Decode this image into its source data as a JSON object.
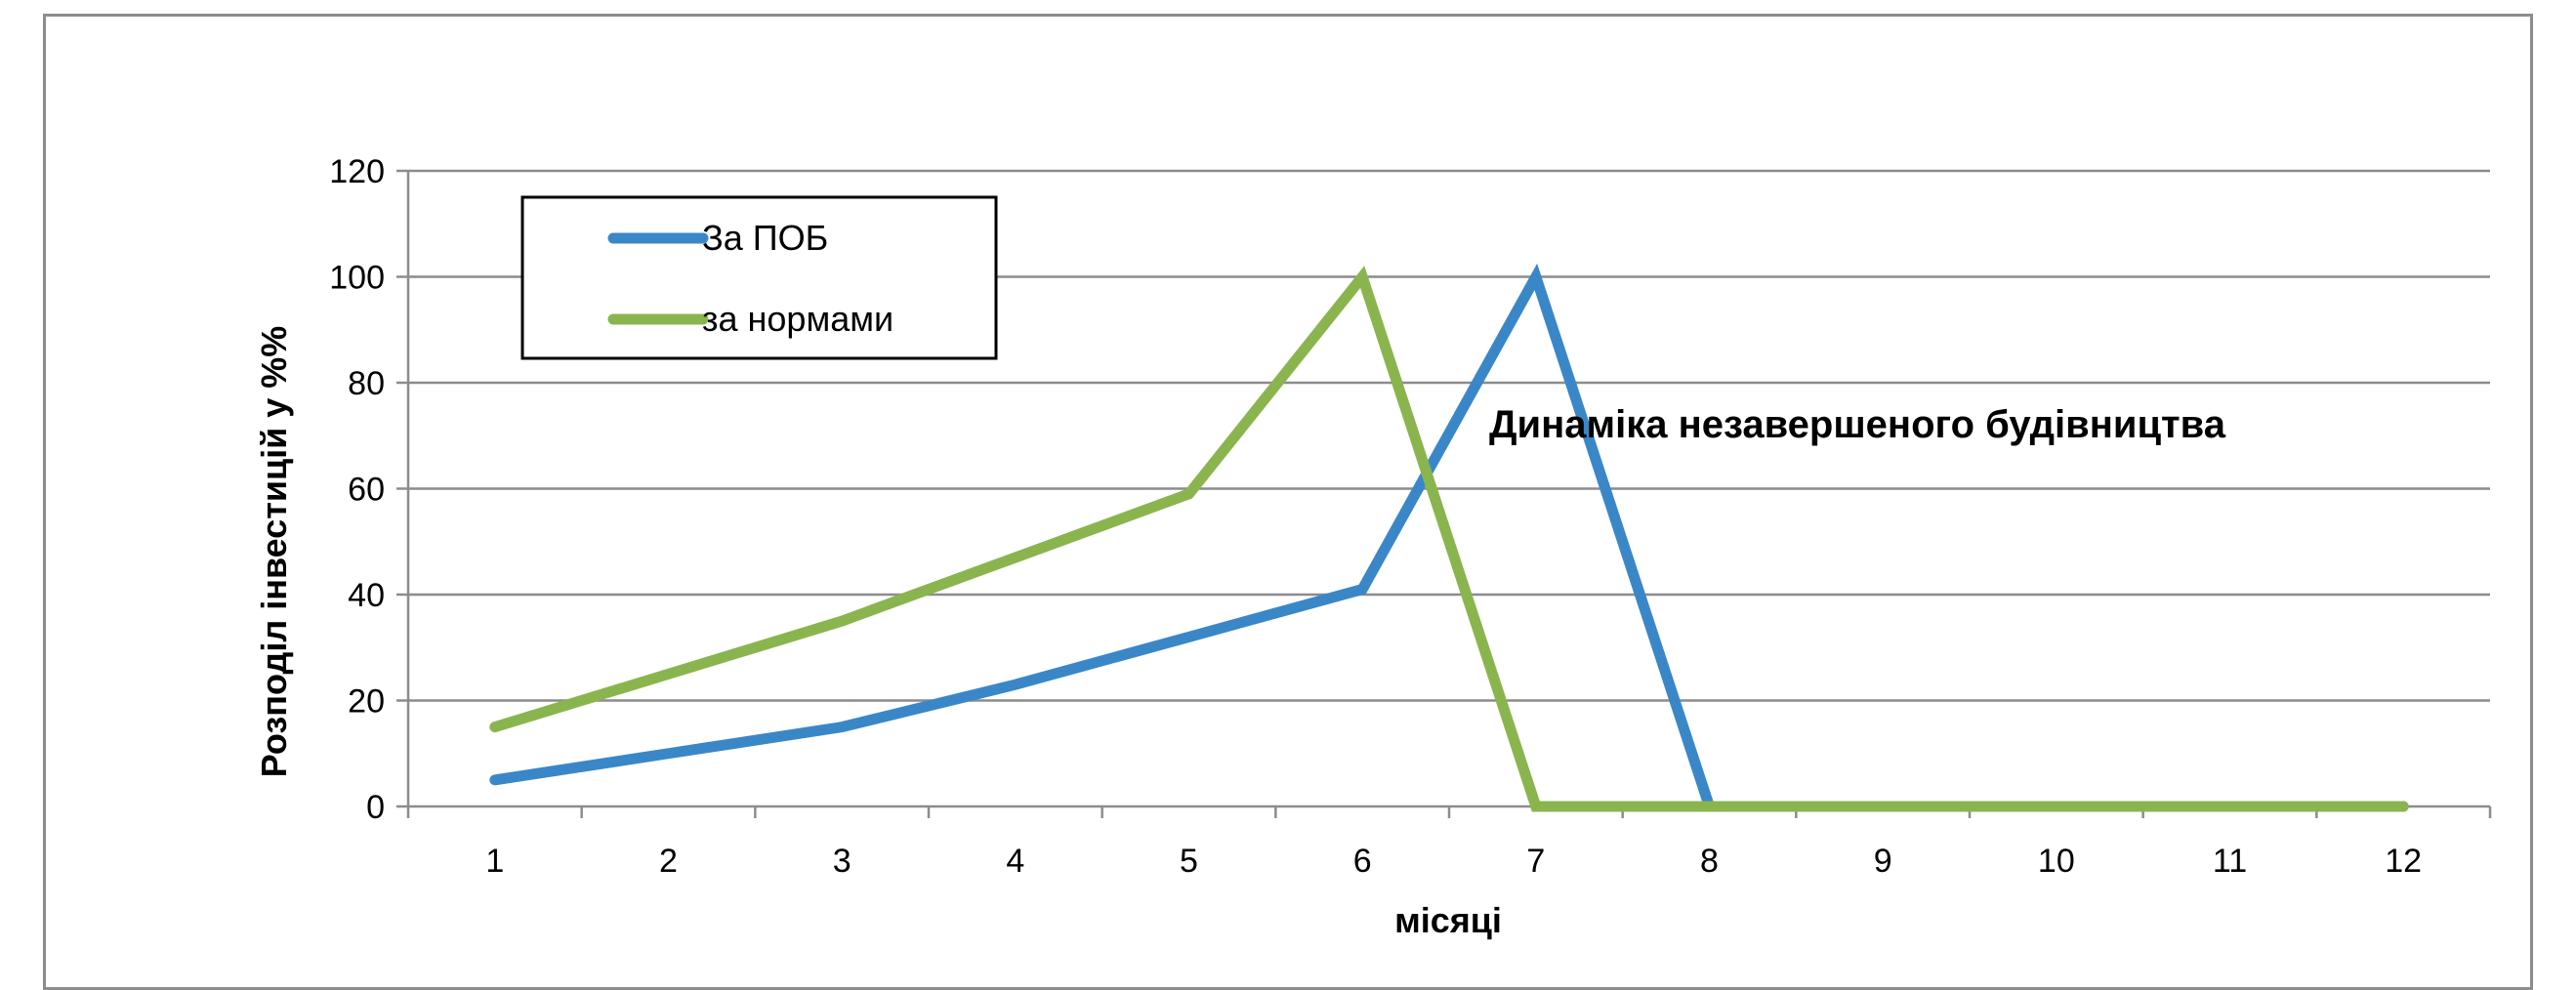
{
  "chart_data": {
    "type": "line",
    "x": [
      1,
      2,
      3,
      4,
      5,
      6,
      7,
      8,
      9,
      10,
      11,
      12
    ],
    "series": [
      {
        "name": "За ПОБ",
        "color": "#3a87c8",
        "values": [
          5,
          10,
          15,
          23,
          32,
          41,
          100,
          0,
          0,
          0,
          0,
          0
        ]
      },
      {
        "name": "за нормами",
        "color": "#8ab54e",
        "values": [
          15,
          25,
          35,
          47,
          59,
          100,
          0,
          0,
          0,
          0,
          0,
          0
        ]
      }
    ],
    "xlabel": "місяці",
    "ylabel": "Розподіл інвестицій у %%",
    "ylim": [
      0,
      120
    ],
    "yticks": [
      0,
      20,
      40,
      60,
      80,
      100,
      120
    ],
    "grid": true,
    "legend_position": "top-left",
    "annotation": "Динаміка незавершеного будівництва"
  }
}
